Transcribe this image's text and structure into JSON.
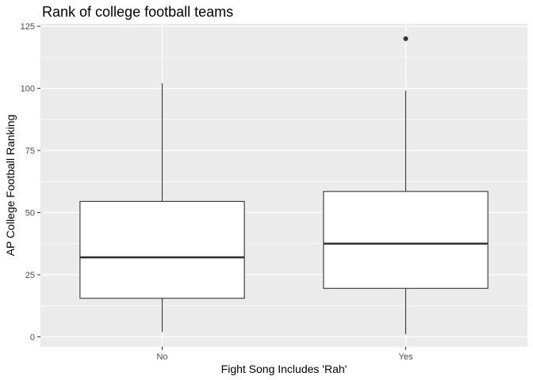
{
  "chart_data": {
    "type": "boxplot",
    "title": "Rank of college football teams",
    "xlabel": "Fight Song Includes 'Rah'",
    "ylabel": "AP College Football Ranking",
    "categories": [
      "No",
      "Yes"
    ],
    "ylim": [
      -4,
      126
    ],
    "yticks": [
      0,
      25,
      50,
      75,
      100,
      125
    ],
    "ytick_labels": [
      "0",
      "25",
      "50",
      "75",
      "100",
      "125"
    ],
    "grid": true,
    "boxes": [
      {
        "category": "No",
        "whisker_low": 2,
        "q1": 15.5,
        "median": 32,
        "q3": 54.5,
        "whisker_high": 102,
        "outliers": []
      },
      {
        "category": "Yes",
        "whisker_low": 1,
        "q1": 19.5,
        "median": 37.5,
        "q3": 58.5,
        "whisker_high": 99,
        "outliers": [
          120
        ]
      }
    ],
    "colors": {
      "panel_background": "#ebebeb",
      "grid_major": "#ffffff",
      "box_fill": "#ffffff",
      "box_stroke": "#333333",
      "tick_text": "#4d4d4d"
    }
  }
}
